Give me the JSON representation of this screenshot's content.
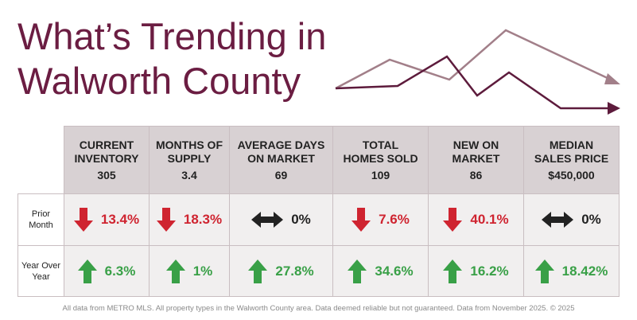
{
  "title": [
    "What’s Trending in",
    "Walworth County"
  ],
  "table": {
    "columns": [
      {
        "label": [
          "CURRENT",
          "INVENTORY"
        ],
        "value": "305"
      },
      {
        "label": [
          "MONTHS OF",
          "SUPPLY"
        ],
        "value": "3.4"
      },
      {
        "label": [
          "AVERAGE DAYS",
          "ON MARKET"
        ],
        "value": "69"
      },
      {
        "label": [
          "TOTAL",
          "HOMES SOLD"
        ],
        "value": "109"
      },
      {
        "label": [
          "NEW ON",
          "MARKET"
        ],
        "value": "86"
      },
      {
        "label": [
          "MEDIAN",
          "SALES PRICE"
        ],
        "value": "$450,000"
      }
    ],
    "rows": [
      {
        "label": [
          "Prior",
          "Month"
        ],
        "cells": [
          "13.4%",
          "18.3%",
          "0%",
          "7.6%",
          "40.1%",
          "0%"
        ]
      },
      {
        "label": [
          "Year Over",
          "Year"
        ],
        "cells": [
          "6.3%",
          "1%",
          "27.8%",
          "34.6%",
          "16.2%",
          "18.42%"
        ]
      }
    ]
  },
  "footer": "All data from METRO MLS. All property types in the Walworth County area. Data deemed reliable but not guaranteed. Data from November 2025. © 2025"
}
